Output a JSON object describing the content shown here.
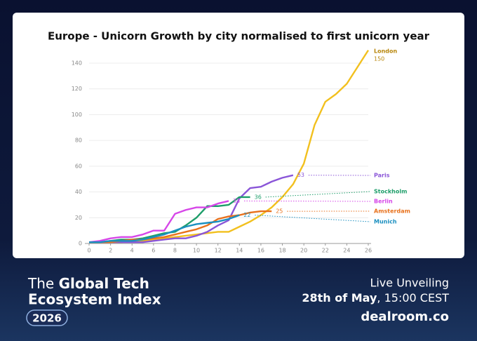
{
  "chart_data": {
    "type": "line",
    "title": "Europe - Unicorn Growth by city normalised to first unicorn year",
    "x": [
      0,
      1,
      2,
      3,
      4,
      5,
      6,
      7,
      8,
      9,
      10,
      11,
      12,
      13,
      14,
      15,
      16,
      17,
      18,
      19,
      20,
      21,
      22,
      23,
      24,
      25,
      26
    ],
    "xlim": [
      0,
      26
    ],
    "xticks": [
      0,
      2,
      4,
      6,
      8,
      10,
      12,
      14,
      16,
      18,
      20,
      22,
      24,
      26
    ],
    "ylim": [
      0,
      150
    ],
    "yticks": [
      0,
      20,
      40,
      60,
      80,
      100,
      120,
      140
    ],
    "grid": true,
    "series": [
      {
        "name": "London",
        "color": "#f2c01e",
        "values": [
          1,
          1,
          1,
          1,
          2,
          2,
          3,
          4,
          5,
          6,
          7,
          8,
          9,
          9,
          13,
          17,
          22,
          28,
          36,
          46,
          62,
          92,
          110,
          116,
          124,
          137,
          150
        ]
      },
      {
        "name": "Paris",
        "color": "#8a55d8",
        "values": [
          1,
          1,
          1,
          1,
          1,
          1,
          2,
          3,
          4,
          4,
          6,
          9,
          14,
          18,
          35,
          43,
          44,
          48,
          51,
          53,
          null,
          null,
          null,
          null,
          null,
          null,
          null
        ]
      },
      {
        "name": "Stockholm",
        "color": "#1e9e6a",
        "values": [
          1,
          1,
          2,
          3,
          3,
          4,
          6,
          8,
          9,
          14,
          20,
          29,
          29,
          30,
          36,
          36,
          null,
          null,
          null,
          null,
          null,
          null,
          null,
          null,
          null,
          null,
          null
        ]
      },
      {
        "name": "Berlin",
        "color": "#d646e8",
        "values": [
          1,
          2,
          4,
          5,
          5,
          7,
          10,
          10,
          23,
          26,
          28,
          28,
          31,
          33,
          null,
          null,
          null,
          null,
          null,
          null,
          null,
          null,
          null,
          null,
          null,
          null,
          null
        ]
      },
      {
        "name": "Amsterdam",
        "color": "#e8711c",
        "values": [
          1,
          1,
          1,
          2,
          3,
          3,
          4,
          5,
          7,
          9,
          11,
          14,
          19,
          21,
          22,
          24,
          25,
          25,
          null,
          null,
          null,
          null,
          null,
          null,
          null,
          null,
          null
        ]
      },
      {
        "name": "Munich",
        "color": "#1a8fc0",
        "values": [
          1,
          1,
          2,
          2,
          2,
          3,
          5,
          7,
          10,
          13,
          15,
          16,
          17,
          19,
          22,
          null,
          null,
          null,
          null,
          null,
          null,
          null,
          null,
          null,
          null,
          null,
          null
        ]
      }
    ]
  },
  "footer": {
    "title_plain": "The ",
    "title_bold": "Global Tech",
    "title_line2": "Ecosystem Index",
    "year": "2026",
    "event": "Live Unveiling",
    "date_bold": "28th of May",
    "date_rest": ", 15:00 CEST",
    "brand": "dealroom.co"
  }
}
